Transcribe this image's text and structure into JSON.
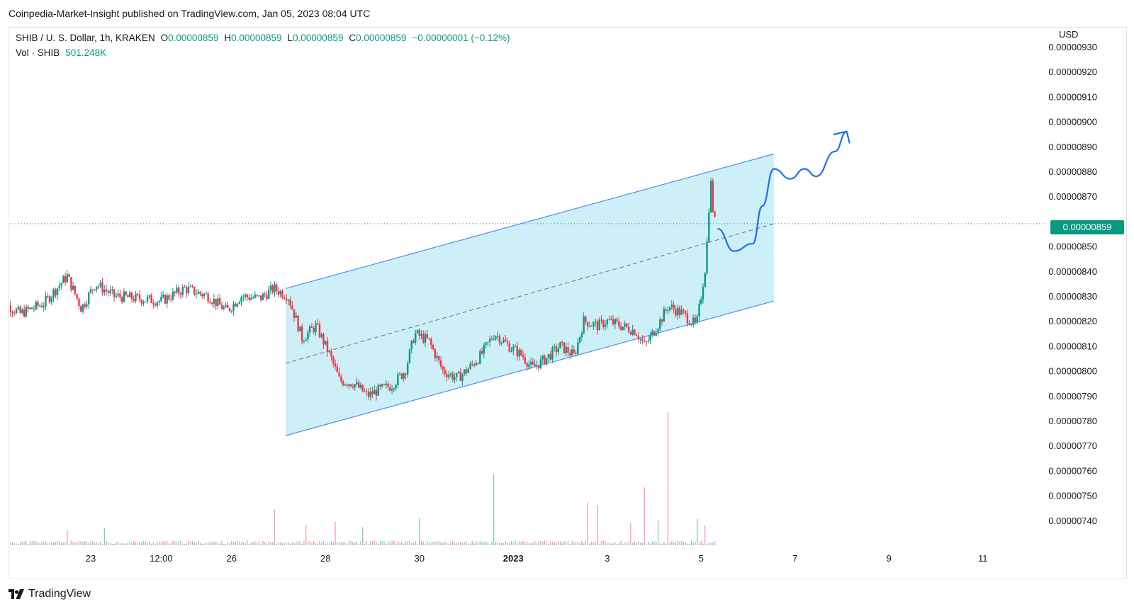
{
  "header": {
    "publisher": "Coinpedia-Market-Insight published on TradingView.com, Jan 05, 2023 08:04 UTC"
  },
  "legend": {
    "symbol": "SHIB / U. S. Dollar, 1h, KRAKEN",
    "open_label": "O",
    "open": "0.00000859",
    "high_label": "H",
    "high": "0.00000859",
    "low_label": "L",
    "low": "0.00000859",
    "close_label": "C",
    "close": "0.00000859",
    "change": "−0.00000001 (−0.12%)",
    "vol_label": "Vol · SHIB",
    "vol": "501.248K"
  },
  "axis": {
    "currency": "USD"
  },
  "last_price": "0.00000859",
  "footer": {
    "brand": "TradingView"
  },
  "colors": {
    "up": "#089981",
    "down": "#f23645",
    "channel_fill": "#cdeff7",
    "channel_line": "#4f8ef7",
    "projection": "#1e6fe8",
    "grid": "#e0e3eb"
  },
  "chart_data": {
    "type": "candlestick",
    "title": "SHIB / U. S. Dollar, 1h, KRAKEN",
    "ylabel": "USD",
    "ylim": [
      7.35e-06,
      9.32e-06
    ],
    "y_ticks": [
      "0.00000930",
      "0.00000920",
      "0.00000910",
      "0.00000900",
      "0.00000890",
      "0.00000880",
      "0.00000870",
      "0.00000850",
      "0.00000840",
      "0.00000830",
      "0.00000820",
      "0.00000810",
      "0.00000800",
      "0.00000790",
      "0.00000780",
      "0.00000770",
      "0.00000760",
      "0.00000750",
      "0.00000740"
    ],
    "x_ticks": [
      {
        "label": "23",
        "day": 23
      },
      {
        "label": "12:00",
        "day": 24.5
      },
      {
        "label": "26",
        "day": 26
      },
      {
        "label": "28",
        "day": 28
      },
      {
        "label": "30",
        "day": 30
      },
      {
        "label": "2023",
        "day": 32,
        "bold": true
      },
      {
        "label": "3",
        "day": 34
      },
      {
        "label": "5",
        "day": 36
      },
      {
        "label": "7",
        "day": 38
      },
      {
        "label": "9",
        "day": 40
      },
      {
        "label": "11",
        "day": 42
      }
    ],
    "price_path": [
      [
        21.0,
        8.29e-06
      ],
      [
        21.5,
        8.23e-06
      ],
      [
        22.0,
        8.27e-06
      ],
      [
        22.5,
        8.38e-06
      ],
      [
        22.8,
        8.25e-06
      ],
      [
        23.1,
        8.35e-06
      ],
      [
        23.5,
        8.3e-06
      ],
      [
        24.0,
        8.29e-06
      ],
      [
        24.5,
        8.28e-06
      ],
      [
        25.0,
        8.33e-06
      ],
      [
        25.5,
        8.3e-06
      ],
      [
        25.9,
        8.24e-06
      ],
      [
        26.2,
        8.3e-06
      ],
      [
        26.6,
        8.29e-06
      ],
      [
        26.9,
        8.33e-06
      ],
      [
        27.2,
        8.3e-06
      ],
      [
        27.35,
        8.22e-06
      ],
      [
        27.5,
        8.13e-06
      ],
      [
        27.8,
        8.18e-06
      ],
      [
        28.1,
        8.06e-06
      ],
      [
        28.3,
        7.96e-06
      ],
      [
        28.6,
        7.95e-06
      ],
      [
        28.9,
        7.9e-06
      ],
      [
        29.1,
        7.92e-06
      ],
      [
        29.4,
        7.94e-06
      ],
      [
        29.7,
        8e-06
      ],
      [
        29.9,
        8.15e-06
      ],
      [
        30.2,
        8.12e-06
      ],
      [
        30.5,
        8e-06
      ],
      [
        30.8,
        7.97e-06
      ],
      [
        31.0,
        8e-06
      ],
      [
        31.3,
        8.06e-06
      ],
      [
        31.6,
        8.15e-06
      ],
      [
        31.9,
        8.1e-06
      ],
      [
        32.2,
        8.06e-06
      ],
      [
        32.4,
        8.01e-06
      ],
      [
        32.7,
        8.05e-06
      ],
      [
        33.0,
        8.1e-06
      ],
      [
        33.3,
        8.06e-06
      ],
      [
        33.5,
        8.2e-06
      ],
      [
        33.8,
        8.18e-06
      ],
      [
        34.0,
        8.2e-06
      ],
      [
        34.3,
        8.18e-06
      ],
      [
        34.6,
        8.16e-06
      ],
      [
        34.8,
        8.1e-06
      ],
      [
        35.1,
        8.19e-06
      ],
      [
        35.3,
        8.26e-06
      ],
      [
        35.6,
        8.23e-06
      ],
      [
        35.9,
        8.18e-06
      ],
      [
        36.0,
        8.3e-06
      ],
      [
        36.1,
        8.43e-06
      ],
      [
        36.15,
        8.6e-06
      ],
      [
        36.2,
        8.77e-06
      ],
      [
        36.25,
        8.65e-06
      ],
      [
        36.3,
        8.59e-06
      ]
    ],
    "volume_ylim": [
      0,
      1000
    ],
    "volume_spikes": [
      [
        22.5,
        110
      ],
      [
        23.3,
        130
      ],
      [
        26.9,
        265
      ],
      [
        27.6,
        150
      ],
      [
        28.2,
        175
      ],
      [
        28.8,
        135
      ],
      [
        30.0,
        200
      ],
      [
        31.6,
        530
      ],
      [
        33.6,
        320
      ],
      [
        33.8,
        300
      ],
      [
        34.5,
        165
      ],
      [
        34.8,
        430
      ],
      [
        35.1,
        190
      ],
      [
        35.3,
        990
      ],
      [
        35.9,
        195
      ],
      [
        36.1,
        150
      ]
    ],
    "channel": {
      "upper": [
        [
          27.15,
          8.33e-06
        ],
        [
          37.55,
          8.87e-06
        ]
      ],
      "lower": [
        [
          27.15,
          7.74e-06
        ],
        [
          37.55,
          8.28e-06
        ]
      ],
      "mid": [
        [
          27.15,
          8.03e-06
        ],
        [
          37.55,
          8.59e-06
        ]
      ]
    },
    "last_price_line": 8.59e-06,
    "projection": [
      [
        36.35,
        8.57e-06
      ],
      [
        36.7,
        8.48e-06
      ],
      [
        37.1,
        8.51e-06
      ],
      [
        37.3,
        8.66e-06
      ],
      [
        37.55,
        8.81e-06
      ],
      [
        37.9,
        8.77e-06
      ],
      [
        38.2,
        8.81e-06
      ],
      [
        38.45,
        8.78e-06
      ],
      [
        38.85,
        8.88e-06
      ],
      [
        39.1,
        8.96e-06
      ]
    ]
  }
}
